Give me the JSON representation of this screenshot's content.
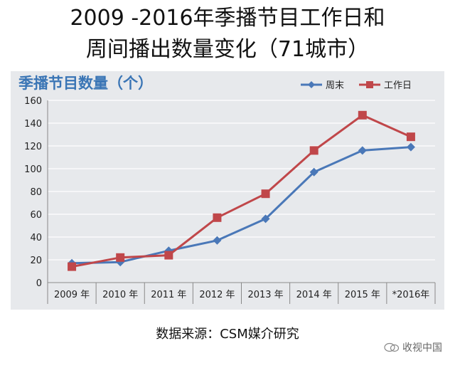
{
  "header": {
    "title_line1": "2009 -2016年季播节目工作日和",
    "title_line2": "周间播出数量变化（71城市）"
  },
  "panel_title": "季播节目数量（个）",
  "source_text": "数据来源：CSM媒介研究",
  "watermark_text": "收视中国",
  "chart_data": {
    "type": "line",
    "title": "季播节目数量（个）",
    "categories": [
      "2009 年",
      "2010 年",
      "2011 年",
      "2012 年",
      "2013 年",
      "2014 年",
      "2015 年",
      "*2016年"
    ],
    "ylim": [
      0,
      160
    ],
    "yticks": [
      "0",
      "20",
      "40",
      "60",
      "80",
      "100",
      "120",
      "140",
      "160"
    ],
    "grid": true,
    "legend_position": "top-right",
    "series": [
      {
        "name": "周末",
        "color": "#4a78b8",
        "marker": "diamond",
        "values": [
          17,
          18,
          28,
          37,
          56,
          97,
          116,
          119
        ]
      },
      {
        "name": "工作日",
        "color": "#c0474a",
        "marker": "square",
        "values": [
          14,
          22,
          24,
          57,
          78,
          116,
          147,
          128
        ]
      }
    ]
  }
}
